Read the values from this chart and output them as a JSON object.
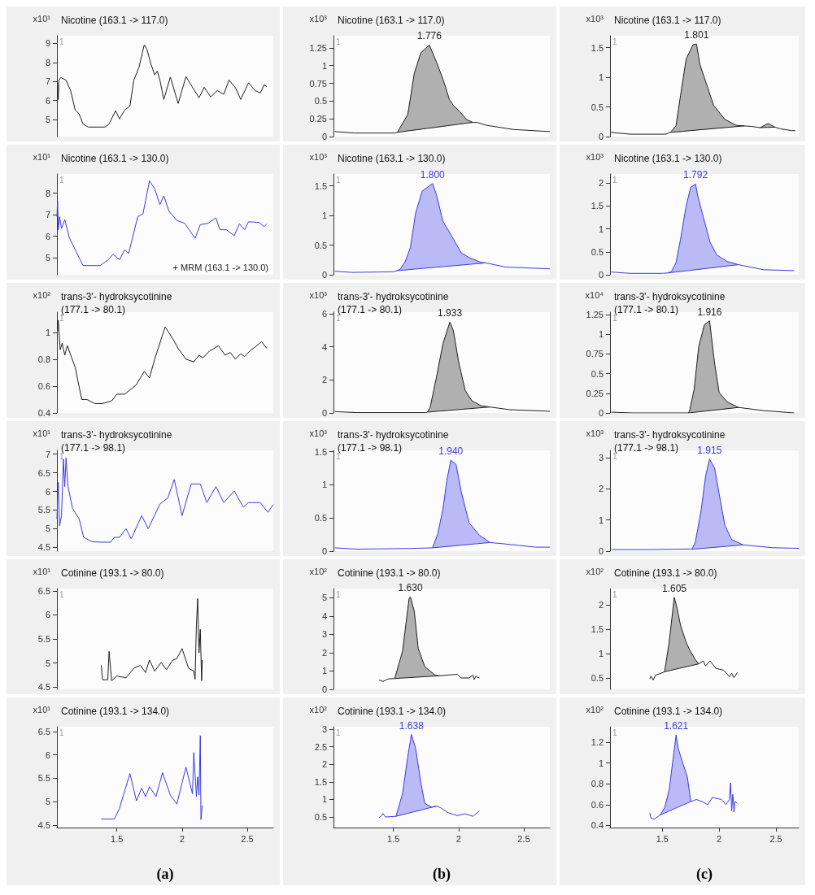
{
  "chart_data": [
    {
      "type": "line",
      "title": "Nicotine (163.1 -> 117.0)",
      "ylabel": "x10¹",
      "xlim": [
        1.04,
        2.7
      ],
      "xticks": [
        1.5,
        2,
        2.5
      ],
      "ylim": [
        4.1,
        9.4
      ],
      "yticks": [
        5,
        6,
        7,
        8,
        9
      ],
      "tick_labels": "y",
      "annotations": [
        "1"
      ],
      "series": [
        {
          "color": "#1e1e1e",
          "x": [
            1.045,
            1.05,
            1.055,
            1.07,
            1.11,
            1.145,
            1.18,
            1.21,
            1.24,
            1.28,
            1.41,
            1.44,
            1.49,
            1.52,
            1.56,
            1.6,
            1.63,
            1.67,
            1.71,
            1.73,
            1.76,
            1.79,
            1.81,
            1.83,
            1.86,
            1.91,
            1.97,
            2.03,
            2.13,
            2.17,
            2.22,
            2.27,
            2.32,
            2.36,
            2.41,
            2.45,
            2.51,
            2.56,
            2.6,
            2.63,
            2.65
          ],
          "values": [
            6.93,
            6.05,
            7.07,
            7.2,
            7.07,
            6.52,
            5.5,
            5.3,
            4.76,
            4.6,
            4.6,
            4.76,
            5.46,
            5.03,
            5.5,
            5.7,
            7.07,
            7.75,
            8.93,
            8.7,
            7.95,
            7.34,
            7.54,
            7.07,
            6.05,
            7.23,
            5.84,
            7.25,
            6.14,
            6.69,
            6.18,
            6.52,
            6.32,
            7.07,
            6.66,
            6.05,
            6.93,
            6.52,
            6.39,
            6.82,
            6.73
          ]
        }
      ]
    },
    {
      "type": "line",
      "title": "Nicotine (163.1 -> 130.0)",
      "ylabel": "x10¹",
      "xlim": [
        1.04,
        2.7
      ],
      "xticks": [
        1.5,
        2,
        2.5
      ],
      "ylim": [
        4.2,
        8.9
      ],
      "yticks": [
        5,
        6,
        7,
        8
      ],
      "tick_labels": "y",
      "annotations": [
        "1",
        "+ MRM (163.1 -> 130.0)"
      ],
      "series": [
        {
          "color": "#3a3ae6",
          "x": [
            1.04,
            1.045,
            1.05,
            1.06,
            1.075,
            1.1,
            1.135,
            1.19,
            1.24,
            1.31,
            1.37,
            1.43,
            1.47,
            1.52,
            1.56,
            1.59,
            1.66,
            1.7,
            1.75,
            1.79,
            1.83,
            1.86,
            1.9,
            1.96,
            2.02,
            2.1,
            2.14,
            2.2,
            2.26,
            2.29,
            2.34,
            2.4,
            2.44,
            2.48,
            2.51,
            2.59,
            2.63,
            2.65
          ],
          "values": [
            6.91,
            7.65,
            6.3,
            6.91,
            6.36,
            6.77,
            5.93,
            5.25,
            4.63,
            4.63,
            4.63,
            4.88,
            5.16,
            4.9,
            5.37,
            5.19,
            6.91,
            7.04,
            8.58,
            8.21,
            7.47,
            7.88,
            7.16,
            6.73,
            6.6,
            5.9,
            6.54,
            6.6,
            6.85,
            6.3,
            6.3,
            6.02,
            6.58,
            6.3,
            6.67,
            6.64,
            6.44,
            6.57
          ]
        }
      ]
    },
    {
      "type": "line",
      "title": "trans-3'- hydroksycotinine\n(177.1 -> 80.1)",
      "ylabel": "x10²",
      "xlim": [
        1.04,
        2.7
      ],
      "xticks": [
        1.5,
        2,
        2.5
      ],
      "ylim": [
        0.4,
        1.15
      ],
      "yticks": [
        0.4,
        0.6,
        0.8,
        1
      ],
      "tick_labels": "y",
      "annotations": [
        "1"
      ],
      "series": [
        {
          "color": "#1e1e1e",
          "x": [
            1.045,
            1.05,
            1.065,
            1.08,
            1.1,
            1.12,
            1.18,
            1.23,
            1.27,
            1.33,
            1.39,
            1.46,
            1.5,
            1.56,
            1.65,
            1.71,
            1.75,
            1.79,
            1.87,
            1.93,
            1.97,
            2.03,
            2.09,
            2.13,
            2.16,
            2.21,
            2.28,
            2.33,
            2.37,
            2.41,
            2.45,
            2.48,
            2.52,
            2.61,
            2.65
          ],
          "values": [
            1.01,
            1.09,
            0.87,
            0.92,
            0.83,
            0.9,
            0.74,
            0.5,
            0.5,
            0.47,
            0.47,
            0.49,
            0.54,
            0.54,
            0.61,
            0.71,
            0.66,
            0.8,
            1.04,
            0.95,
            0.88,
            0.8,
            0.78,
            0.83,
            0.81,
            0.86,
            0.9,
            0.83,
            0.85,
            0.8,
            0.84,
            0.82,
            0.86,
            0.93,
            0.88
          ]
        }
      ]
    },
    {
      "type": "line",
      "title": "trans-3'- hydroksycotinine\n(177.1 -> 98.1)",
      "ylabel": "x10¹",
      "xlim": [
        1.04,
        2.7
      ],
      "xticks": [
        1.5,
        2,
        2.5
      ],
      "ylim": [
        4.4,
        7.1
      ],
      "yticks": [
        4.5,
        5,
        5.5,
        6,
        6.5,
        7
      ],
      "tick_labels": "y",
      "annotations": [
        "1"
      ],
      "series": [
        {
          "color": "#3a3ae6",
          "x": [
            1.04,
            1.05,
            1.06,
            1.075,
            1.09,
            1.1,
            1.11,
            1.125,
            1.16,
            1.21,
            1.245,
            1.31,
            1.38,
            1.45,
            1.48,
            1.52,
            1.57,
            1.61,
            1.69,
            1.74,
            1.83,
            1.89,
            1.94,
            2.0,
            2.07,
            2.14,
            2.19,
            2.26,
            2.32,
            2.4,
            2.47,
            2.51,
            2.54,
            2.6,
            2.66,
            2.7
          ],
          "values": [
            5.27,
            6.24,
            5.08,
            5.35,
            6.86,
            6.13,
            6.9,
            6.13,
            5.54,
            5.27,
            4.77,
            4.65,
            4.64,
            4.64,
            4.77,
            4.77,
            5.0,
            4.73,
            5.35,
            5.0,
            5.66,
            5.82,
            6.32,
            5.35,
            6.2,
            6.2,
            5.7,
            6.13,
            5.7,
            6.01,
            5.58,
            5.7,
            5.7,
            5.7,
            5.44,
            5.65
          ]
        }
      ]
    },
    {
      "type": "line",
      "title": "Cotinine (193.1 -> 80.0)",
      "ylabel": "x10¹",
      "xlim": [
        1.04,
        2.7
      ],
      "xticks": [
        1.5,
        2,
        2.5
      ],
      "ylim": [
        4.45,
        6.55
      ],
      "yticks": [
        4.5,
        5,
        5.5,
        6,
        6.5
      ],
      "tick_labels": "y",
      "annotations": [
        "1"
      ],
      "series": [
        {
          "color": "#1e1e1e",
          "x": [
            1.38,
            1.39,
            1.43,
            1.44,
            1.46,
            1.5,
            1.57,
            1.63,
            1.68,
            1.72,
            1.75,
            1.79,
            1.84,
            1.88,
            1.93,
            1.96,
            2.0,
            2.05,
            2.09,
            2.1,
            2.11,
            2.12,
            2.13,
            2.14,
            2.15,
            2.155
          ],
          "values": [
            4.95,
            4.65,
            4.65,
            5.24,
            4.63,
            4.73,
            4.69,
            4.89,
            4.95,
            4.8,
            5.06,
            4.83,
            5.01,
            4.86,
            5.06,
            5.09,
            5.3,
            4.89,
            4.83,
            4.66,
            5.79,
            6.34,
            5.21,
            5.7,
            4.63,
            5.06
          ]
        }
      ]
    },
    {
      "type": "line",
      "title": "Cotinine (193.1 -> 134.0)",
      "ylabel": "x10¹",
      "xlabel": "(a)",
      "xlim": [
        1.04,
        2.7
      ],
      "xticks": [
        1.5,
        2,
        2.5
      ],
      "ylim": [
        4.45,
        6.6
      ],
      "yticks": [
        4.5,
        5,
        5.5,
        6,
        6.5
      ],
      "annotations": [
        "1"
      ],
      "series": [
        {
          "color": "#3a3ae6",
          "x": [
            1.38,
            1.48,
            1.52,
            1.6,
            1.65,
            1.69,
            1.72,
            1.75,
            1.8,
            1.85,
            1.91,
            1.96,
            2.03,
            2.08,
            2.09,
            2.11,
            2.12,
            2.13,
            2.14,
            2.145,
            2.155
          ],
          "values": [
            4.63,
            4.63,
            4.86,
            5.6,
            5.02,
            5.29,
            5.11,
            5.32,
            5.11,
            5.62,
            5.14,
            4.95,
            5.74,
            5.17,
            6.05,
            5.11,
            5.53,
            5.14,
            6.41,
            4.62,
            4.92
          ]
        }
      ]
    },
    {
      "type": "line",
      "title": "Nicotine (163.1 -> 117.0)",
      "ylabel": "x10³",
      "xlim": [
        1.04,
        2.7
      ],
      "xticks": [
        1.5,
        2,
        2.5
      ],
      "ylim": [
        0,
        1.42
      ],
      "yticks": [
        0,
        0.25,
        0.5,
        0.75,
        1,
        1.25
      ],
      "tick_labels": "y",
      "annotations": [
        "1",
        {
          "text": "1.776",
          "x": 1.776,
          "y": 1.29
        }
      ],
      "series": [
        {
          "color": "#1e1e1e",
          "x": [
            1.05,
            1.2,
            1.51,
            1.53,
            1.61,
            1.66,
            1.71,
            1.776,
            1.83,
            1.88,
            1.93,
            1.96,
            2.01,
            2.06,
            2.11,
            2.14,
            2.21,
            2.42,
            2.7
          ],
          "values": [
            0.07,
            0.05,
            0.05,
            0.06,
            0.31,
            0.89,
            1.18,
            1.29,
            1.05,
            0.81,
            0.52,
            0.44,
            0.35,
            0.24,
            0.2,
            0.2,
            0.16,
            0.1,
            0.07
          ],
          "lower": [
            null,
            null,
            null,
            0.06,
            0.08,
            0.09,
            0.1,
            0.12,
            0.13,
            0.14,
            0.16,
            0.16,
            0.18,
            0.19,
            0.2,
            null,
            null,
            null,
            null
          ],
          "upper": [
            null,
            null,
            null,
            0.06,
            0.31,
            0.89,
            1.18,
            1.29,
            1.05,
            0.81,
            0.52,
            0.44,
            0.35,
            0.24,
            0.2,
            null,
            null,
            null,
            null
          ]
        },
        {
          "color": "#1e1e1e",
          "x": [
            1.53,
            2.11
          ],
          "values": [
            0.06,
            0.2
          ]
        }
      ]
    },
    {
      "type": "line",
      "title": "Nicotine (163.1 -> 130.0)",
      "ylabel": "x10³",
      "xlim": [
        1.04,
        2.7
      ],
      "xticks": [
        1.5,
        2,
        2.5
      ],
      "ylim": [
        0,
        1.7
      ],
      "yticks": [
        0,
        0.5,
        1,
        1.5
      ],
      "tick_labels": "y",
      "annotations": [
        "1",
        {
          "text": "1.800",
          "x": 1.8,
          "y": 1.54
        }
      ],
      "series": [
        {
          "color": "#3a3ae6",
          "x": [
            1.05,
            1.18,
            1.5,
            1.53,
            1.55,
            1.59,
            1.63,
            1.67,
            1.72,
            1.8,
            1.83,
            1.88,
            1.94,
            2.02,
            2.08,
            2.17,
            2.21,
            2.36,
            2.7
          ],
          "values": [
            0.06,
            0.04,
            0.05,
            0.07,
            0.09,
            0.22,
            0.46,
            1.04,
            1.41,
            1.54,
            1.35,
            0.9,
            0.68,
            0.37,
            0.29,
            0.21,
            0.2,
            0.13,
            0.1
          ],
          "lower": [
            null,
            null,
            null,
            0.07,
            0.07,
            0.08,
            0.09,
            0.1,
            0.11,
            0.12,
            0.13,
            0.14,
            0.15,
            0.16,
            0.18,
            0.19,
            0.2,
            null,
            null
          ],
          "upper": [
            null,
            null,
            null,
            0.07,
            0.09,
            0.22,
            0.46,
            1.04,
            1.41,
            1.54,
            1.35,
            0.9,
            0.68,
            0.37,
            0.29,
            0.21,
            0.2,
            null,
            null
          ]
        },
        {
          "color": "#3a3ae6",
          "x": [
            1.53,
            2.21
          ],
          "values": [
            0.07,
            0.2
          ]
        }
      ]
    },
    {
      "type": "line",
      "title": "trans-3'- hydroksycotinine\n(177.1 -> 80.1)",
      "ylabel": "x10³",
      "xlim": [
        1.04,
        2.7
      ],
      "xticks": [
        1.5,
        2,
        2.5
      ],
      "ylim": [
        0,
        6.1
      ],
      "yticks": [
        0,
        2,
        4,
        6
      ],
      "tick_labels": "y",
      "annotations": [
        "1",
        {
          "text": "1.933",
          "x": 1.933,
          "y": 5.5
        }
      ],
      "series": [
        {
          "color": "#1e1e1e",
          "x": [
            1.05,
            1.22,
            1.75,
            1.76,
            1.78,
            1.83,
            1.88,
            1.933,
            1.96,
            2.0,
            2.05,
            2.1,
            2.17,
            2.24,
            2.39,
            2.7
          ],
          "values": [
            0.08,
            0.02,
            0.02,
            0.05,
            0.28,
            2.16,
            4.2,
            5.5,
            4.98,
            3.1,
            1.38,
            0.75,
            0.44,
            0.36,
            0.2,
            0.1
          ],
          "lower": [
            null,
            null,
            null,
            0.05,
            0.06,
            0.1,
            0.13,
            0.16,
            0.18,
            0.21,
            0.24,
            0.27,
            0.32,
            0.36,
            null,
            null
          ],
          "upper": [
            null,
            null,
            null,
            0.05,
            0.28,
            2.16,
            4.2,
            5.5,
            4.98,
            3.1,
            1.38,
            0.75,
            0.44,
            0.36,
            null,
            null
          ]
        },
        {
          "color": "#1e1e1e",
          "x": [
            1.76,
            2.24
          ],
          "values": [
            0.05,
            0.36
          ]
        }
      ]
    },
    {
      "type": "line",
      "title": "trans-3'- hydroksycotinine\n(177.1 -> 98.1)",
      "ylabel": "x10³",
      "xlim": [
        1.04,
        2.7
      ],
      "xticks": [
        1.5,
        2,
        2.5
      ],
      "ylim": [
        0,
        1.52
      ],
      "yticks": [
        0,
        0.5,
        1,
        1.5
      ],
      "tick_labels": "y",
      "annotations": [
        "1",
        {
          "text": "1.940",
          "x": 1.94,
          "y": 1.37
        }
      ],
      "series": [
        {
          "color": "#3a3ae6",
          "x": [
            1.05,
            1.22,
            1.62,
            1.8,
            1.84,
            1.88,
            1.91,
            1.94,
            1.98,
            2.02,
            2.08,
            2.16,
            2.24,
            2.35,
            2.59,
            2.7
          ],
          "values": [
            0.05,
            0.03,
            0.04,
            0.05,
            0.26,
            0.64,
            1.07,
            1.37,
            1.31,
            0.9,
            0.43,
            0.24,
            0.13,
            0.11,
            0.06,
            0.06
          ],
          "lower": [
            null,
            null,
            null,
            0.05,
            0.06,
            0.06,
            0.07,
            0.07,
            0.08,
            0.09,
            0.1,
            0.12,
            0.13,
            null,
            null,
            null
          ],
          "upper": [
            null,
            null,
            null,
            0.05,
            0.26,
            0.64,
            1.07,
            1.37,
            1.31,
            0.9,
            0.43,
            0.24,
            0.13,
            null,
            null,
            null
          ]
        },
        {
          "color": "#3a3ae6",
          "x": [
            1.8,
            2.24
          ],
          "values": [
            0.05,
            0.13
          ]
        }
      ]
    },
    {
      "type": "line",
      "title": "Cotinine (193.1 -> 80.0)",
      "ylabel": "x10²",
      "xlim": [
        1.04,
        2.7
      ],
      "xticks": [
        1.5,
        2,
        2.5
      ],
      "ylim": [
        0,
        5.5
      ],
      "yticks": [
        0,
        1,
        2,
        3,
        4,
        5
      ],
      "tick_labels": "y",
      "annotations": [
        "1",
        {
          "text": "1.630",
          "x": 1.63,
          "y": 5.05
        }
      ],
      "series": [
        {
          "color": "#1e1e1e",
          "x": [
            1.39,
            1.42,
            1.46,
            1.51,
            1.57,
            1.62,
            1.63,
            1.66,
            1.69,
            1.74,
            1.82,
            1.85,
            1.99,
            2.02,
            2.08,
            2.11,
            2.12,
            2.13,
            2.16
          ],
          "values": [
            0.51,
            0.43,
            0.57,
            0.59,
            2.09,
            4.95,
            5.05,
            4.26,
            2.24,
            1.24,
            0.77,
            0.74,
            0.82,
            0.62,
            0.62,
            0.77,
            0.54,
            0.7,
            0.62
          ],
          "lower": [
            null,
            null,
            null,
            0.59,
            0.62,
            0.64,
            0.64,
            0.66,
            0.67,
            0.69,
            0.73,
            0.74,
            null,
            null,
            null,
            null,
            null,
            null,
            null
          ],
          "upper": [
            null,
            null,
            null,
            0.59,
            2.09,
            4.95,
            5.05,
            4.26,
            2.24,
            1.24,
            0.77,
            0.74,
            null,
            null,
            null,
            null,
            null,
            null,
            null
          ]
        },
        {
          "color": "#1e1e1e",
          "x": [
            1.51,
            1.85
          ],
          "values": [
            0.59,
            0.74
          ]
        }
      ]
    },
    {
      "type": "line",
      "title": "Cotinine (193.1 -> 134.0)",
      "ylabel": "x10²",
      "xlabel": "(b)",
      "xlim": [
        1.04,
        2.7
      ],
      "xticks": [
        1.5,
        2,
        2.5
      ],
      "ylim": [
        0.2,
        3.07
      ],
      "yticks": [
        0.5,
        1,
        1.5,
        2,
        2.5,
        3
      ],
      "annotations": [
        "1",
        {
          "text": "1.638",
          "x": 1.638,
          "y": 2.85
        }
      ],
      "series": [
        {
          "color": "#3a3ae6",
          "x": [
            1.39,
            1.41,
            1.42,
            1.44,
            1.52,
            1.57,
            1.61,
            1.638,
            1.67,
            1.71,
            1.74,
            1.79,
            1.83,
            1.86,
            1.92,
            1.99,
            2.05,
            2.11,
            2.16
          ],
          "values": [
            0.48,
            0.54,
            0.6,
            0.5,
            0.52,
            1.17,
            2.22,
            2.85,
            2.46,
            1.49,
            0.89,
            0.78,
            0.81,
            0.77,
            0.62,
            0.54,
            0.59,
            0.52,
            0.67
          ],
          "lower": [
            null,
            null,
            null,
            null,
            0.52,
            0.57,
            0.6,
            0.63,
            0.66,
            0.7,
            0.73,
            0.77,
            0.81,
            null,
            null,
            null,
            null,
            null,
            null
          ],
          "upper": [
            null,
            null,
            null,
            null,
            0.52,
            1.17,
            2.22,
            2.85,
            2.46,
            1.49,
            0.89,
            0.78,
            0.81,
            null,
            null,
            null,
            null,
            null,
            null
          ]
        },
        {
          "color": "#3a3ae6",
          "x": [
            1.52,
            1.83
          ],
          "values": [
            0.52,
            0.81
          ]
        }
      ]
    },
    {
      "type": "line",
      "title": "Nicotine (163.1 -> 117.0)",
      "ylabel": "x10³",
      "xlim": [
        1.04,
        2.7
      ],
      "xticks": [
        1.5,
        2,
        2.5
      ],
      "ylim": [
        0,
        1.7
      ],
      "yticks": [
        0,
        0.5,
        1,
        1.5
      ],
      "tick_labels": "y",
      "annotations": [
        "1",
        {
          "text": "1.801",
          "x": 1.801,
          "y": 1.56
        }
      ],
      "series": [
        {
          "color": "#1e1e1e",
          "x": [
            1.05,
            1.22,
            1.53,
            1.57,
            1.58,
            1.62,
            1.66,
            1.71,
            1.77,
            1.801,
            1.83,
            1.9,
            1.95,
            2.05,
            2.15,
            2.22,
            2.29,
            2.36,
            2.43,
            2.49,
            2.54,
            2.64,
            2.67
          ],
          "values": [
            0.07,
            0.04,
            0.04,
            0.07,
            0.09,
            0.18,
            0.69,
            1.31,
            1.55,
            1.56,
            1.22,
            0.82,
            0.53,
            0.29,
            0.19,
            0.18,
            0.17,
            0.15,
            0.22,
            0.16,
            0.13,
            0.1,
            0.1
          ],
          "lower": [
            null,
            null,
            null,
            0.07,
            0.07,
            0.08,
            0.08,
            0.09,
            0.1,
            0.11,
            0.11,
            0.12,
            0.13,
            0.15,
            0.17,
            0.18,
            null,
            0.15,
            0.155,
            0.16,
            null,
            null,
            null
          ],
          "upper": [
            null,
            null,
            null,
            0.07,
            0.09,
            0.18,
            0.69,
            1.31,
            1.55,
            1.56,
            1.22,
            0.82,
            0.53,
            0.29,
            0.19,
            0.18,
            null,
            0.15,
            0.22,
            0.16,
            null,
            null,
            null
          ]
        },
        {
          "color": "#1e1e1e",
          "x": [
            1.57,
            2.22
          ],
          "values": [
            0.07,
            0.18
          ]
        },
        {
          "color": "#1e1e1e",
          "x": [
            2.36,
            2.49
          ],
          "values": [
            0.15,
            0.16
          ]
        }
      ]
    },
    {
      "type": "line",
      "title": "Nicotine (163.1 -> 130.0)",
      "ylabel": "x10³",
      "xlim": [
        1.04,
        2.7
      ],
      "xticks": [
        1.5,
        2,
        2.5
      ],
      "ylim": [
        0,
        2.2
      ],
      "yticks": [
        0,
        0.5,
        1,
        1.5,
        2
      ],
      "tick_labels": "y",
      "annotations": [
        "1",
        {
          "text": "1.792",
          "x": 1.792,
          "y": 1.98
        }
      ],
      "series": [
        {
          "color": "#3a3ae6",
          "x": [
            1.05,
            1.22,
            1.5,
            1.55,
            1.58,
            1.62,
            1.66,
            1.71,
            1.75,
            1.792,
            1.81,
            1.87,
            1.92,
            1.98,
            2.07,
            2.17,
            2.39,
            2.66
          ],
          "values": [
            0.06,
            0.03,
            0.03,
            0.04,
            0.07,
            0.26,
            0.77,
            1.51,
            1.91,
            1.98,
            1.74,
            1.17,
            0.71,
            0.43,
            0.29,
            0.22,
            0.11,
            0.09
          ],
          "lower": [
            null,
            null,
            null,
            0.04,
            0.05,
            0.06,
            0.07,
            0.09,
            0.1,
            0.11,
            0.11,
            0.13,
            0.15,
            0.16,
            0.19,
            0.22,
            null,
            null
          ],
          "upper": [
            null,
            null,
            null,
            0.04,
            0.07,
            0.26,
            0.77,
            1.51,
            1.91,
            1.98,
            1.74,
            1.17,
            0.71,
            0.43,
            0.29,
            0.22,
            null,
            null
          ]
        },
        {
          "color": "#3a3ae6",
          "x": [
            1.55,
            2.17
          ],
          "values": [
            0.04,
            0.22
          ]
        }
      ]
    },
    {
      "type": "line",
      "title": "trans-3'- hydroksycotinine\n(177.1 -> 80.1)",
      "ylabel": "x10⁴",
      "xlim": [
        1.04,
        2.7
      ],
      "xticks": [
        1.5,
        2,
        2.5
      ],
      "ylim": [
        0,
        1.28
      ],
      "yticks": [
        0,
        0.25,
        0.5,
        0.75,
        1,
        1.25
      ],
      "tick_labels": "y",
      "annotations": [
        "1",
        {
          "text": "1.916",
          "x": 1.916,
          "y": 1.17
        }
      ],
      "series": [
        {
          "color": "#1e1e1e",
          "x": [
            1.05,
            1.24,
            1.71,
            1.73,
            1.74,
            1.78,
            1.82,
            1.87,
            1.916,
            1.93,
            1.96,
            2.0,
            2.07,
            2.17,
            2.39,
            2.66
          ],
          "values": [
            0.01,
            0,
            0,
            0,
            0.03,
            0.3,
            0.84,
            1.12,
            1.17,
            0.99,
            0.63,
            0.26,
            0.14,
            0.07,
            0.03,
            0
          ],
          "lower": [
            null,
            null,
            null,
            0,
            0,
            0.01,
            0.01,
            0.02,
            0.03,
            0.03,
            0.04,
            0.04,
            0.05,
            0.07,
            null,
            null
          ],
          "upper": [
            null,
            null,
            null,
            0,
            0.03,
            0.3,
            0.84,
            1.12,
            1.17,
            0.99,
            0.63,
            0.26,
            0.14,
            0.07,
            null,
            null
          ]
        },
        {
          "color": "#1e1e1e",
          "x": [
            1.73,
            2.17
          ],
          "values": [
            0,
            0.07
          ]
        }
      ]
    },
    {
      "type": "line",
      "title": "trans-3'- hydroksycotinine\n(177.1 -> 98.1)",
      "ylabel": "x10³",
      "xlim": [
        1.04,
        2.7
      ],
      "xticks": [
        1.5,
        2,
        2.5
      ],
      "ylim": [
        0,
        3.23
      ],
      "yticks": [
        0,
        1,
        2,
        3
      ],
      "tick_labels": "y",
      "annotations": [
        "1",
        {
          "text": "1.915",
          "x": 1.915,
          "y": 2.95
        }
      ],
      "series": [
        {
          "color": "#3a3ae6",
          "x": [
            1.05,
            1.39,
            1.75,
            1.76,
            1.79,
            1.84,
            1.88,
            1.915,
            1.96,
            2.0,
            2.05,
            2.11,
            2.21,
            2.3,
            2.47,
            2.7
          ],
          "values": [
            0.05,
            0.05,
            0.07,
            0.06,
            0.28,
            1.28,
            2.39,
            2.95,
            2.66,
            1.83,
            0.83,
            0.37,
            0.2,
            0.17,
            0.11,
            0.09
          ],
          "lower": [
            null,
            null,
            null,
            0.06,
            0.07,
            0.08,
            0.1,
            0.11,
            0.12,
            0.13,
            0.15,
            0.17,
            0.2,
            null,
            null,
            null
          ],
          "upper": [
            null,
            null,
            null,
            0.06,
            0.28,
            1.28,
            2.39,
            2.95,
            2.66,
            1.83,
            0.83,
            0.37,
            0.2,
            null,
            null,
            null
          ]
        },
        {
          "color": "#3a3ae6",
          "x": [
            1.76,
            2.21
          ],
          "values": [
            0.06,
            0.2
          ]
        }
      ]
    },
    {
      "type": "line",
      "title": "Cotinine (193.1 -> 80.0)",
      "ylabel": "x10²",
      "xlim": [
        1.04,
        2.7
      ],
      "xticks": [
        1.5,
        2,
        2.5
      ],
      "ylim": [
        0.27,
        2.33
      ],
      "yticks": [
        0.5,
        1,
        1.5,
        2
      ],
      "tick_labels": "y",
      "annotations": [
        "1",
        {
          "text": "1.605",
          "x": 1.605,
          "y": 2.15
        }
      ],
      "series": [
        {
          "color": "#1e1e1e",
          "x": [
            1.39,
            1.4,
            1.42,
            1.44,
            1.49,
            1.52,
            1.56,
            1.605,
            1.63,
            1.66,
            1.71,
            1.74,
            1.79,
            1.82,
            1.86,
            1.88,
            1.92,
            1.97,
            2.04,
            2.09,
            2.11,
            2.13,
            2.16
          ],
          "values": [
            0.48,
            0.54,
            0.46,
            0.56,
            0.6,
            0.63,
            1.23,
            2.15,
            1.93,
            1.58,
            1.23,
            1.08,
            0.88,
            0.79,
            0.85,
            0.75,
            0.85,
            0.7,
            0.66,
            0.53,
            0.6,
            0.51,
            0.61
          ],
          "lower": [
            null,
            null,
            null,
            null,
            null,
            0.63,
            0.65,
            0.67,
            0.69,
            0.71,
            0.73,
            0.75,
            0.77,
            0.79,
            null,
            null,
            null,
            null,
            null,
            null,
            null,
            null,
            null
          ],
          "upper": [
            null,
            null,
            null,
            null,
            null,
            0.63,
            1.23,
            2.15,
            1.93,
            1.58,
            1.23,
            1.08,
            0.88,
            0.79,
            null,
            null,
            null,
            null,
            null,
            null,
            null,
            null,
            null
          ]
        },
        {
          "color": "#1e1e1e",
          "x": [
            1.52,
            1.82
          ],
          "values": [
            0.63,
            0.79
          ]
        }
      ]
    },
    {
      "type": "line",
      "title": "Cotinine (193.1 -> 134.0)",
      "ylabel": "x10²",
      "xlabel": "(c)",
      "xlim": [
        1.04,
        2.7
      ],
      "xticks": [
        1.5,
        2,
        2.5
      ],
      "ylim": [
        0.38,
        1.35
      ],
      "yticks": [
        0.4,
        0.6,
        0.8,
        1,
        1.2
      ],
      "annotations": [
        "1",
        {
          "text": "1.621",
          "x": 1.621,
          "y": 1.27
        }
      ],
      "series": [
        {
          "color": "#3a3ae6",
          "x": [
            1.39,
            1.4,
            1.43,
            1.48,
            1.52,
            1.56,
            1.621,
            1.64,
            1.68,
            1.72,
            1.75,
            1.8,
            1.85,
            1.9,
            1.94,
            2.02,
            2.06,
            2.09,
            2.1,
            2.11,
            2.12,
            2.13,
            2.14,
            2.16
          ],
          "values": [
            0.52,
            0.47,
            0.46,
            0.5,
            0.57,
            0.74,
            1.27,
            1.14,
            1.0,
            0.87,
            0.63,
            0.65,
            0.63,
            0.6,
            0.67,
            0.65,
            0.6,
            0.65,
            0.81,
            0.54,
            0.7,
            0.53,
            0.63,
            0.61
          ],
          "lower": [
            null,
            null,
            null,
            0.5,
            0.52,
            0.54,
            0.57,
            0.58,
            0.6,
            0.62,
            0.63,
            null,
            null,
            null,
            null,
            null,
            null,
            null,
            null,
            null,
            null,
            null,
            null,
            null
          ],
          "upper": [
            null,
            null,
            null,
            0.5,
            0.57,
            0.74,
            1.27,
            1.14,
            1.0,
            0.87,
            0.63,
            null,
            null,
            null,
            null,
            null,
            null,
            null,
            null,
            null,
            null,
            null,
            null,
            null
          ]
        },
        {
          "color": "#3a3ae6",
          "x": [
            1.48,
            1.75
          ],
          "values": [
            0.5,
            0.63
          ]
        }
      ]
    }
  ]
}
